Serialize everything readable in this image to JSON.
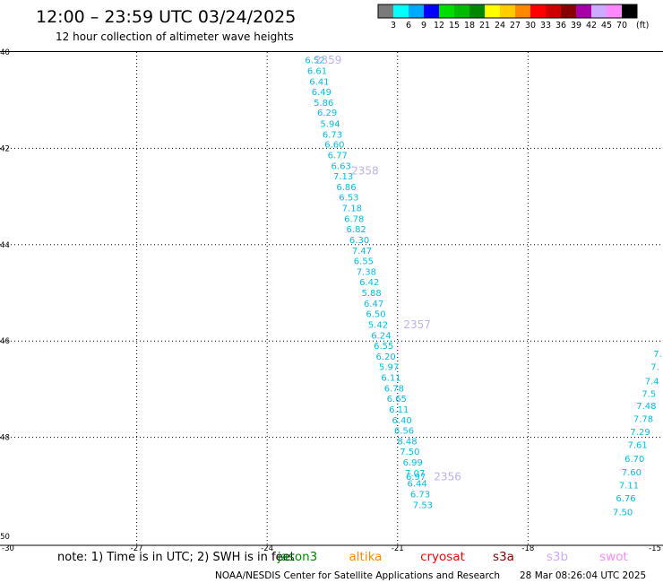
{
  "header": {
    "title": "12:00 – 23:59 UTC 03/24/2025",
    "subtitle": "12 hour collection of altimeter wave heights"
  },
  "colorbar": {
    "labels": [
      "3",
      "6",
      "9",
      "12",
      "15",
      "18",
      "21",
      "24",
      "27",
      "30",
      "33",
      "36",
      "39",
      "42",
      "45",
      "70"
    ],
    "unit": "(ft)",
    "colors": [
      "#7a7a7a",
      "#00ffff",
      "#00aaff",
      "#0000ff",
      "#00dd00",
      "#00bb00",
      "#008800",
      "#ffff00",
      "#ffcc00",
      "#ff8800",
      "#ff0000",
      "#cc0000",
      "#880000",
      "#aa00aa",
      "#ccaaff",
      "#ff88ff",
      "#000000"
    ]
  },
  "map": {
    "lon_ticks": [
      "-30",
      "-27",
      "-24",
      "-21",
      "-18",
      "-15"
    ],
    "lat_ticks": [
      "-40",
      "-42",
      "-44",
      "-46",
      "-48",
      "-50"
    ],
    "lon_range": [
      -30,
      -15
    ],
    "lat_range": [
      -40,
      -50.2
    ],
    "value_color": "#00bde6",
    "time_color": "#c0b0f0"
  },
  "track_a": [
    {
      "lon": -22.9,
      "lat": -40.18,
      "v": "6.52"
    },
    {
      "lon": -22.85,
      "lat": -40.4,
      "v": "6.61"
    },
    {
      "lon": -22.8,
      "lat": -40.62,
      "v": "6.41"
    },
    {
      "lon": -22.75,
      "lat": -40.84,
      "v": "6.49"
    },
    {
      "lon": -22.7,
      "lat": -41.06,
      "v": "5.86"
    },
    {
      "lon": -22.62,
      "lat": -41.27,
      "v": "6.29"
    },
    {
      "lon": -22.55,
      "lat": -41.5,
      "v": "5.94"
    },
    {
      "lon": -22.5,
      "lat": -41.72,
      "v": "6.73"
    },
    {
      "lon": -22.45,
      "lat": -41.93,
      "v": "6.60"
    },
    {
      "lon": -22.38,
      "lat": -42.15,
      "v": "6.77"
    },
    {
      "lon": -22.3,
      "lat": -42.37,
      "v": "6.63"
    },
    {
      "lon": -22.25,
      "lat": -42.59,
      "v": "7.13"
    },
    {
      "lon": -22.18,
      "lat": -42.81,
      "v": "6.86"
    },
    {
      "lon": -22.12,
      "lat": -43.03,
      "v": "6.53"
    },
    {
      "lon": -22.05,
      "lat": -43.25,
      "v": "7.18"
    },
    {
      "lon": -22.0,
      "lat": -43.47,
      "v": "6.78"
    },
    {
      "lon": -21.95,
      "lat": -43.69,
      "v": "6.82"
    },
    {
      "lon": -21.88,
      "lat": -43.91,
      "v": "6.30"
    },
    {
      "lon": -21.82,
      "lat": -44.13,
      "v": "7.47"
    },
    {
      "lon": -21.78,
      "lat": -44.35,
      "v": "6.55"
    },
    {
      "lon": -21.72,
      "lat": -44.57,
      "v": "7.38"
    },
    {
      "lon": -21.65,
      "lat": -44.79,
      "v": "6.42"
    },
    {
      "lon": -21.6,
      "lat": -45.01,
      "v": "5.88"
    },
    {
      "lon": -21.55,
      "lat": -45.23,
      "v": "6.47"
    },
    {
      "lon": -21.5,
      "lat": -45.45,
      "v": "6.50"
    },
    {
      "lon": -21.45,
      "lat": -45.67,
      "v": "5.42"
    },
    {
      "lon": -21.38,
      "lat": -45.89,
      "v": "6.24"
    },
    {
      "lon": -21.32,
      "lat": -46.11,
      "v": "6.55"
    },
    {
      "lon": -21.27,
      "lat": -46.33,
      "v": "6.20"
    },
    {
      "lon": -21.2,
      "lat": -46.55,
      "v": "5.97"
    },
    {
      "lon": -21.15,
      "lat": -46.77,
      "v": "6.11"
    },
    {
      "lon": -21.08,
      "lat": -46.99,
      "v": "6.78"
    },
    {
      "lon": -21.02,
      "lat": -47.21,
      "v": "6.65"
    },
    {
      "lon": -20.97,
      "lat": -47.43,
      "v": "6.11"
    },
    {
      "lon": -20.9,
      "lat": -47.65,
      "v": "6.40"
    },
    {
      "lon": -20.85,
      "lat": -47.87,
      "v": "6.56"
    },
    {
      "lon": -20.78,
      "lat": -48.09,
      "v": "8.48"
    },
    {
      "lon": -20.72,
      "lat": -48.31,
      "v": "7.50"
    },
    {
      "lon": -20.65,
      "lat": -48.53,
      "v": "6.99"
    },
    {
      "lon": -20.6,
      "lat": -48.75,
      "v": "7.07"
    },
    {
      "lon": -20.58,
      "lat": -48.83,
      "v": "6.97"
    },
    {
      "lon": -20.55,
      "lat": -48.97,
      "v": "6.44"
    },
    {
      "lon": -20.48,
      "lat": -49.19,
      "v": "6.73"
    },
    {
      "lon": -20.42,
      "lat": -49.41,
      "v": "7.53"
    }
  ],
  "track_b": [
    {
      "lon": -15.02,
      "lat": -46.28,
      "v": "7."
    },
    {
      "lon": -15.08,
      "lat": -46.55,
      "v": "7."
    },
    {
      "lon": -15.15,
      "lat": -46.84,
      "v": "7.4"
    },
    {
      "lon": -15.22,
      "lat": -47.1,
      "v": "7.5"
    },
    {
      "lon": -15.28,
      "lat": -47.36,
      "v": "7.48"
    },
    {
      "lon": -15.35,
      "lat": -47.63,
      "v": "7.78"
    },
    {
      "lon": -15.42,
      "lat": -47.9,
      "v": "7.29"
    },
    {
      "lon": -15.48,
      "lat": -48.17,
      "v": "7.61"
    },
    {
      "lon": -15.55,
      "lat": -48.45,
      "v": "6.70"
    },
    {
      "lon": -15.62,
      "lat": -48.73,
      "v": "7.60"
    },
    {
      "lon": -15.68,
      "lat": -49.0,
      "v": "7.11"
    },
    {
      "lon": -15.75,
      "lat": -49.27,
      "v": "6.76"
    },
    {
      "lon": -15.82,
      "lat": -49.56,
      "v": "7.50"
    }
  ],
  "time_labels": [
    {
      "lon": -22.6,
      "lat": -40.18,
      "t": "2359"
    },
    {
      "lon": -21.75,
      "lat": -42.48,
      "t": "2358"
    },
    {
      "lon": -20.55,
      "lat": -45.67,
      "t": "2357"
    },
    {
      "lon": -19.85,
      "lat": -48.83,
      "t": "2356"
    }
  ],
  "footer": {
    "note": "note:  1) Time is in UTC;  2) SWH is in feet",
    "missions": [
      {
        "name": "jason3",
        "color": "#008800"
      },
      {
        "name": "altika",
        "color": "#ff8800"
      },
      {
        "name": "cryosat",
        "color": "#ff0000"
      },
      {
        "name": "s3a",
        "color": "#880000"
      },
      {
        "name": "s3b",
        "color": "#ccaaff"
      },
      {
        "name": "swot",
        "color": "#ff88ff"
      }
    ],
    "credit": "NOAA/NESDIS Center for Satellite Applications and Research",
    "timestamp": "28 Mar 08:26:04 UTC 2025"
  }
}
